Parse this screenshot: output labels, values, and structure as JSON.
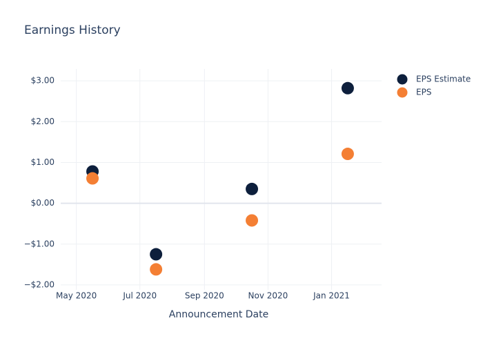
{
  "chart_data": {
    "type": "scatter",
    "title": "Earnings History",
    "x_label": "Announcement Date",
    "x": [
      "2020-05",
      "2020-07",
      "2020-10",
      "2021-01"
    ],
    "series": [
      {
        "name": "EPS Estimate",
        "color": "#0d1f3c",
        "values": [
          0.78,
          -1.25,
          0.35,
          2.82
        ]
      },
      {
        "name": "EPS",
        "color": "#f47f34",
        "values": [
          0.61,
          -1.62,
          -0.42,
          1.21
        ]
      }
    ],
    "xlim": [
      "2020-04-16",
      "2021-02-18"
    ],
    "xticks": [
      {
        "value": "2020-05",
        "label": "May 2020"
      },
      {
        "value": "2020-07",
        "label": "Jul 2020"
      },
      {
        "value": "2020-09",
        "label": "Sep 2020"
      },
      {
        "value": "2020-11",
        "label": "Nov 2020"
      },
      {
        "value": "2021-01",
        "label": "Jan 2021"
      }
    ],
    "ylim": [
      -2.12,
      3.29
    ],
    "yticks": [
      {
        "value": -2,
        "label": "−$2.00"
      },
      {
        "value": -1,
        "label": "−$1.00"
      },
      {
        "value": 0,
        "label": "$0.00"
      },
      {
        "value": 1,
        "label": "$1.00"
      },
      {
        "value": 2,
        "label": "$2.00"
      },
      {
        "value": 3,
        "label": "$3.00"
      }
    ],
    "grid": true,
    "legend": "right"
  }
}
